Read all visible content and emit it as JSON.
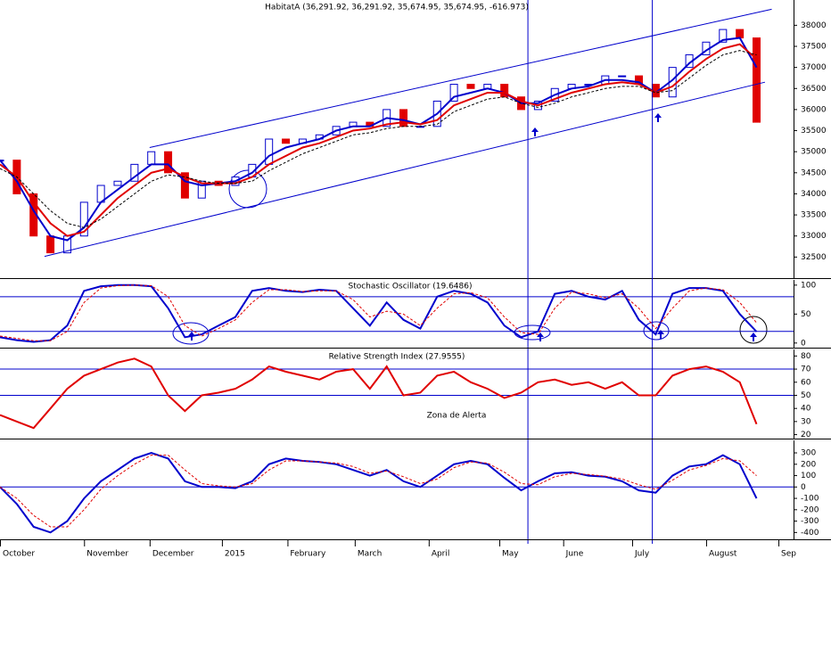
{
  "chart_data": [
    {
      "type": "price",
      "title": "HabitatA (36,291.92, 36,291.92, 35,674.95, 35,674.95, -616.973)",
      "xlim": [
        0,
        47.2
      ],
      "ylim": [
        32000,
        38600
      ],
      "yticks": [
        32500,
        33000,
        33500,
        34000,
        34500,
        35000,
        35500,
        36000,
        36500,
        37000,
        37500,
        38000
      ],
      "up_color": "#0000cc",
      "down_color": "#e00000",
      "values": [
        34800,
        34000,
        33000,
        32600,
        33000,
        33800,
        34200,
        34300,
        34700,
        35000,
        34500,
        33900,
        34300,
        34200,
        34400,
        34700,
        35300,
        35200,
        35300,
        35400,
        35600,
        35700,
        35600,
        36000,
        35600,
        35600,
        36200,
        36600,
        36500,
        36600,
        36300,
        36000,
        36200,
        36500,
        36600,
        36600,
        36800,
        36800,
        36600,
        36300,
        37000,
        37300,
        37600,
        37900,
        37700,
        35700
      ],
      "series": [
        {
          "color": "#0000cc",
          "values": [
            34800,
            34300,
            33600,
            33000,
            32900,
            33200,
            33800,
            34100,
            34400,
            34700,
            34700,
            34300,
            34200,
            34250,
            34300,
            34500,
            34900,
            35100,
            35200,
            35300,
            35500,
            35600,
            35600,
            35800,
            35750,
            35650,
            35900,
            36300,
            36400,
            36500,
            36400,
            36150,
            36150,
            36350,
            36500,
            36550,
            36700,
            36700,
            36650,
            36400,
            36700,
            37100,
            37400,
            37650,
            37700,
            37000
          ]
        },
        {
          "color": "#e00000",
          "values": [
            34700,
            34400,
            33800,
            33300,
            33000,
            33100,
            33500,
            33900,
            34200,
            34500,
            34600,
            34400,
            34250,
            34250,
            34250,
            34400,
            34700,
            34900,
            35100,
            35200,
            35350,
            35500,
            35550,
            35650,
            35700,
            35650,
            35750,
            36100,
            36250,
            36400,
            36400,
            36200,
            36100,
            36250,
            36400,
            36500,
            36600,
            36650,
            36600,
            36400,
            36550,
            36900,
            37200,
            37450,
            37550,
            37200
          ]
        },
        {
          "color": "#000000",
          "dash": true,
          "values": [
            34600,
            34400,
            34000,
            33600,
            33300,
            33200,
            33400,
            33700,
            34000,
            34300,
            34450,
            34400,
            34300,
            34250,
            34250,
            34300,
            34550,
            34750,
            34950,
            35100,
            35250,
            35400,
            35450,
            35550,
            35600,
            35600,
            35650,
            35950,
            36100,
            36250,
            36300,
            36150,
            36050,
            36150,
            36300,
            36400,
            36500,
            36550,
            36550,
            36400,
            36450,
            36750,
            37050,
            37300,
            37400,
            37300
          ]
        }
      ],
      "trend_lines": [
        {
          "x": [
            8.9,
            45.9
          ],
          "y": [
            35100,
            38380
          ]
        },
        {
          "x": [
            2.65,
            45.5
          ],
          "y": [
            32515,
            36650
          ]
        }
      ],
      "vlines": [
        31.4,
        38.8
      ]
    },
    {
      "type": "line",
      "title": "Stochastic Oscillator (19.6486)",
      "xlim": [
        0,
        47.2
      ],
      "ylim": [
        -8,
        109
      ],
      "yticks": [
        0,
        50,
        100
      ],
      "hlines": [
        20,
        80
      ],
      "series": [
        {
          "color": "#0000cc",
          "values": [
            10,
            5,
            2,
            5,
            30,
            90,
            98,
            100,
            100,
            98,
            60,
            10,
            15,
            30,
            45,
            90,
            95,
            90,
            88,
            92,
            90,
            60,
            30,
            70,
            40,
            25,
            80,
            90,
            85,
            70,
            30,
            10,
            20,
            85,
            90,
            80,
            75,
            90,
            40,
            15,
            85,
            95,
            95,
            90,
            50,
            19.6
          ]
        },
        {
          "color": "#e00000",
          "dash": true,
          "values": [
            12,
            8,
            4,
            4,
            20,
            70,
            95,
            99,
            100,
            99,
            80,
            30,
            12,
            25,
            40,
            70,
            92,
            92,
            89,
            90,
            90,
            75,
            45,
            55,
            50,
            30,
            60,
            85,
            87,
            78,
            45,
            18,
            15,
            60,
            88,
            85,
            78,
            85,
            60,
            25,
            60,
            90,
            95,
            92,
            70,
            35
          ]
        }
      ]
    },
    {
      "type": "line",
      "title": "Relative Strength Index (27.9555)",
      "annotation": "Zona de Alerta",
      "xlim": [
        0,
        47.2
      ],
      "ylim": [
        17,
        85
      ],
      "yticks": [
        20,
        30,
        40,
        50,
        60,
        70,
        80
      ],
      "hlines": [
        50,
        70
      ],
      "series": [
        {
          "color": "#e00000",
          "values": [
            35,
            30,
            25,
            40,
            55,
            65,
            70,
            75,
            78,
            72,
            50,
            38,
            50,
            52,
            55,
            62,
            72,
            68,
            65,
            62,
            68,
            70,
            55,
            72,
            50,
            52,
            65,
            68,
            60,
            55,
            48,
            52,
            60,
            62,
            58,
            60,
            55,
            60,
            50,
            50,
            65,
            70,
            72,
            68,
            60,
            28
          ]
        }
      ]
    },
    {
      "type": "line",
      "xlim": [
        0,
        47.2
      ],
      "ylim": [
        -460,
        410
      ],
      "yticks": [
        -400,
        -300,
        -200,
        -100,
        0,
        100,
        200,
        300
      ],
      "hlines": [
        0
      ],
      "xticks": [
        {
          "value": 0,
          "label": "October"
        },
        {
          "value": 5.0,
          "label": "November"
        },
        {
          "value": 8.9,
          "label": "December"
        },
        {
          "value": 13.2,
          "label": "2015"
        },
        {
          "value": 17.1,
          "label": "February"
        },
        {
          "value": 21.1,
          "label": "March"
        },
        {
          "value": 25.5,
          "label": "April"
        },
        {
          "value": 29.7,
          "label": "May"
        },
        {
          "value": 33.5,
          "label": "June"
        },
        {
          "value": 37.6,
          "label": "July"
        },
        {
          "value": 42.0,
          "label": "August"
        },
        {
          "value": 46.3,
          "label": "Sep"
        }
      ],
      "series": [
        {
          "color": "#0000cc",
          "values": [
            0,
            -150,
            -350,
            -400,
            -300,
            -100,
            50,
            150,
            250,
            300,
            250,
            50,
            0,
            0,
            -10,
            50,
            200,
            250,
            230,
            220,
            200,
            150,
            100,
            150,
            50,
            0,
            100,
            200,
            230,
            200,
            80,
            -30,
            50,
            120,
            130,
            100,
            90,
            50,
            -30,
            -50,
            100,
            180,
            200,
            280,
            200,
            -100
          ]
        },
        {
          "color": "#e00000",
          "dash": true,
          "values": [
            0,
            -100,
            -250,
            -350,
            -350,
            -200,
            -20,
            100,
            200,
            280,
            280,
            150,
            30,
            10,
            0,
            30,
            150,
            230,
            230,
            220,
            210,
            180,
            120,
            140,
            90,
            30,
            70,
            170,
            220,
            210,
            130,
            30,
            20,
            90,
            120,
            110,
            95,
            70,
            20,
            -20,
            60,
            150,
            190,
            250,
            230,
            100
          ]
        }
      ]
    }
  ]
}
